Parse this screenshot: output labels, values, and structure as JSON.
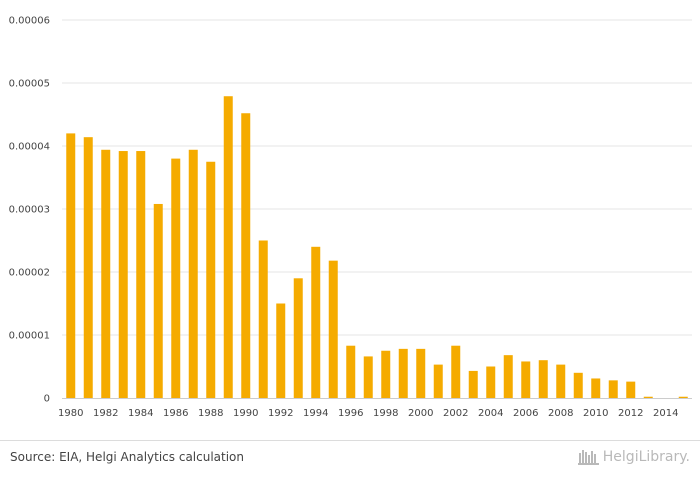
{
  "chart_data": {
    "type": "bar",
    "title": "",
    "xlabel": "",
    "ylabel": "",
    "ylim": [
      0,
      6e-05
    ],
    "yticks": [
      "0",
      "0.00001",
      "0.00002",
      "0.00003",
      "0.00004",
      "0.00005",
      "0.00006"
    ],
    "ytick_values": [
      0,
      1e-05,
      2e-05,
      3e-05,
      4e-05,
      5e-05,
      6e-05
    ],
    "xtick_labels": [
      "1980",
      "1982",
      "1984",
      "1986",
      "1988",
      "1990",
      "1992",
      "1994",
      "1996",
      "1998",
      "2000",
      "2002",
      "2004",
      "2006",
      "2008",
      "2010",
      "2012",
      "2014"
    ],
    "categories": [
      "1980",
      "1981",
      "1982",
      "1983",
      "1984",
      "1985",
      "1986",
      "1987",
      "1988",
      "1989",
      "1990",
      "1991",
      "1992",
      "1993",
      "1994",
      "1995",
      "1996",
      "1997",
      "1998",
      "1999",
      "2000",
      "2001",
      "2002",
      "2003",
      "2004",
      "2005",
      "2006",
      "2007",
      "2008",
      "2009",
      "2010",
      "2011",
      "2012",
      "2013",
      "2014",
      "2015"
    ],
    "values": [
      4.2e-05,
      4.14e-05,
      3.94e-05,
      3.92e-05,
      3.92e-05,
      3.08e-05,
      3.8e-05,
      3.94e-05,
      3.75e-05,
      4.79e-05,
      4.52e-05,
      2.5e-05,
      1.5e-05,
      1.9e-05,
      2.4e-05,
      2.18e-05,
      8.3e-06,
      6.6e-06,
      7.5e-06,
      7.8e-06,
      7.8e-06,
      5.3e-06,
      8.3e-06,
      4.3e-06,
      5e-06,
      6.8e-06,
      5.8e-06,
      6e-06,
      5.3e-06,
      4e-06,
      3.1e-06,
      2.8e-06,
      2.6e-06,
      2e-07,
      0.0,
      2e-07
    ],
    "bar_color": "#f5ab00",
    "grid": true
  },
  "footer": {
    "source": "Source: EIA, Helgi Analytics calculation",
    "brand": "HelgiLibrary."
  },
  "colors": {
    "grid": "#e6e6e6",
    "axis": "#cccccc",
    "brand": "#b9b9b9"
  }
}
